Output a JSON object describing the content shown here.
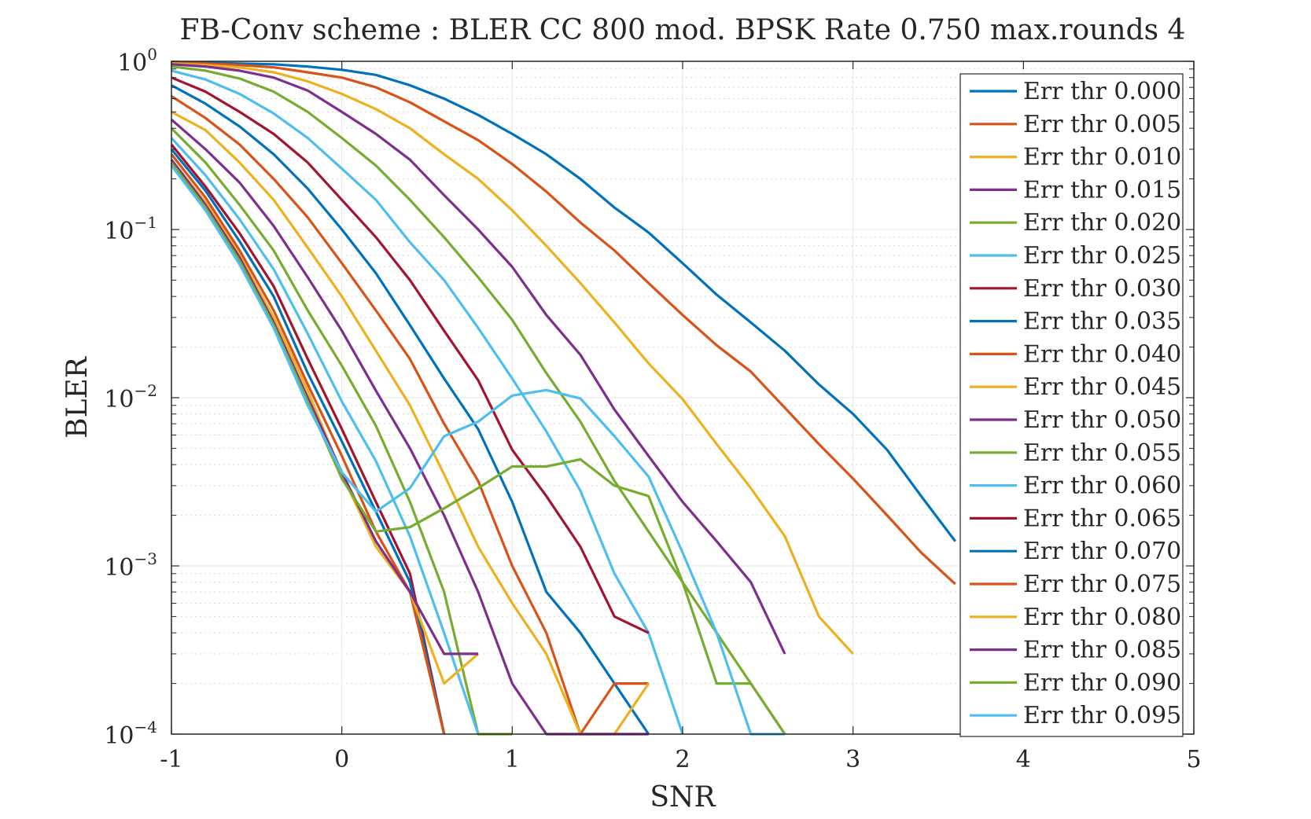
{
  "chart_data": {
    "type": "line",
    "title": "FB-Conv scheme : BLER CC 800 mod. BPSK Rate 0.750 max.rounds 4",
    "xlabel": "SNR",
    "ylabel": "BLER",
    "xlim": [
      -1,
      5
    ],
    "ylim": [
      0.0001,
      1
    ],
    "yscale": "log",
    "xticks": [
      "-1",
      "0",
      "1",
      "2",
      "3",
      "4",
      "5"
    ],
    "yticks": [
      {
        "base": "10",
        "exp": "0"
      },
      {
        "base": "10",
        "exp": "−1"
      },
      {
        "base": "10",
        "exp": "−2"
      },
      {
        "base": "10",
        "exp": "−3"
      },
      {
        "base": "10",
        "exp": "−4"
      }
    ],
    "grid": true,
    "minor_grid": true,
    "legend_position": "right",
    "series": [
      {
        "name": "Err thr 0.000",
        "color": "#0072BD",
        "x": [
          -1,
          -0.8,
          -0.6,
          -0.4,
          -0.2,
          0,
          0.2,
          0.4,
          0.6,
          0.8,
          1,
          1.2,
          1.4,
          1.6,
          1.8,
          2,
          2.2,
          2.4,
          2.6,
          2.8,
          3,
          3.2,
          3.4,
          3.6
        ],
        "y": [
          0.99,
          0.98,
          0.97,
          0.96,
          0.93,
          0.89,
          0.83,
          0.72,
          0.6,
          0.48,
          0.37,
          0.28,
          0.2,
          0.135,
          0.096,
          0.063,
          0.041,
          0.028,
          0.019,
          0.012,
          0.008,
          0.0049,
          0.0026,
          0.0014
        ]
      },
      {
        "name": "Err thr 0.005",
        "color": "#D95319",
        "x": [
          -1,
          -0.8,
          -0.6,
          -0.4,
          -0.2,
          0,
          0.2,
          0.4,
          0.6,
          0.8,
          1,
          1.2,
          1.4,
          1.6,
          1.8,
          2,
          2.2,
          2.4,
          2.6,
          2.8,
          3,
          3.2,
          3.4,
          3.6
        ],
        "y": [
          0.98,
          0.97,
          0.95,
          0.92,
          0.86,
          0.8,
          0.7,
          0.57,
          0.44,
          0.34,
          0.245,
          0.168,
          0.11,
          0.075,
          0.048,
          0.031,
          0.0205,
          0.0143,
          0.0087,
          0.0053,
          0.0033,
          0.002,
          0.0012,
          0.00078
        ]
      },
      {
        "name": "Err thr 0.010",
        "color": "#EDB120",
        "x": [
          -1,
          -0.8,
          -0.6,
          -0.4,
          -0.2,
          0,
          0.2,
          0.4,
          0.6,
          0.8,
          1,
          1.2,
          1.4,
          1.6,
          1.8,
          2,
          2.2,
          2.4,
          2.6,
          2.8,
          3
        ],
        "y": [
          0.97,
          0.95,
          0.92,
          0.86,
          0.76,
          0.64,
          0.52,
          0.4,
          0.28,
          0.2,
          0.13,
          0.08,
          0.048,
          0.028,
          0.016,
          0.0098,
          0.0053,
          0.0029,
          0.0015,
          0.0005,
          0.0003
        ]
      },
      {
        "name": "Err thr 0.015",
        "color": "#7E2F8E",
        "x": [
          -1,
          -0.8,
          -0.6,
          -0.4,
          -0.2,
          0,
          0.2,
          0.4,
          0.6,
          0.8,
          1,
          1.2,
          1.4,
          1.6,
          1.8,
          2,
          2.2,
          2.4,
          2.6
        ],
        "y": [
          0.96,
          0.93,
          0.88,
          0.8,
          0.67,
          0.5,
          0.37,
          0.26,
          0.16,
          0.1,
          0.06,
          0.031,
          0.018,
          0.0085,
          0.0045,
          0.0024,
          0.0014,
          0.0008,
          0.0003
        ]
      },
      {
        "name": "Err thr 0.020",
        "color": "#77AC30",
        "x": [
          -1,
          -0.8,
          -0.6,
          -0.4,
          -0.2,
          0,
          0.2,
          0.4,
          0.6,
          0.8,
          1,
          1.2,
          1.4,
          1.6,
          1.8,
          2,
          2.2,
          2.4,
          2.6
        ],
        "y": [
          0.93,
          0.88,
          0.79,
          0.66,
          0.5,
          0.35,
          0.24,
          0.15,
          0.09,
          0.052,
          0.029,
          0.014,
          0.0072,
          0.0032,
          0.0016,
          0.0008,
          0.0004,
          0.0002,
          0.0001
        ]
      },
      {
        "name": "Err thr 0.025",
        "color": "#4DBEEE",
        "x": [
          -1,
          -0.8,
          -0.6,
          -0.4,
          -0.2,
          0,
          0.2,
          0.4,
          0.6,
          0.8,
          1,
          1.2,
          1.4,
          1.6,
          1.8,
          2
        ],
        "y": [
          0.88,
          0.78,
          0.64,
          0.49,
          0.35,
          0.23,
          0.15,
          0.084,
          0.05,
          0.026,
          0.013,
          0.0063,
          0.0028,
          0.0009,
          0.0004,
          0.0001
        ]
      },
      {
        "name": "Err thr 0.030",
        "color": "#A2142F",
        "x": [
          -1,
          -0.8,
          -0.6,
          -0.4,
          -0.2,
          0,
          0.2,
          0.4,
          0.6,
          0.8,
          1,
          1.2,
          1.4,
          1.6,
          1.8
        ],
        "y": [
          0.8,
          0.66,
          0.5,
          0.37,
          0.25,
          0.15,
          0.09,
          0.05,
          0.025,
          0.0127,
          0.0049,
          0.0026,
          0.0013,
          0.0005,
          0.0004
        ]
      },
      {
        "name": "Err thr 0.035",
        "color": "#0072BD",
        "x": [
          -1,
          -0.8,
          -0.6,
          -0.4,
          -0.2,
          0,
          0.2,
          0.4,
          0.6,
          0.8,
          1,
          1.2,
          1.4,
          1.6,
          1.8
        ],
        "y": [
          0.72,
          0.56,
          0.41,
          0.28,
          0.175,
          0.1,
          0.055,
          0.027,
          0.013,
          0.0065,
          0.0024,
          0.0007,
          0.0004,
          0.0002,
          0.0001
        ]
      },
      {
        "name": "Err thr 0.040",
        "color": "#D95319",
        "x": [
          -1,
          -0.8,
          -0.6,
          -0.4,
          -0.2,
          0,
          0.2,
          0.4,
          0.6,
          0.8,
          1,
          1.2,
          1.4,
          1.6,
          1.8
        ],
        "y": [
          0.62,
          0.46,
          0.32,
          0.2,
          0.118,
          0.063,
          0.033,
          0.017,
          0.007,
          0.0032,
          0.001,
          0.0004,
          0.0001,
          0.0002,
          0.0002
        ]
      },
      {
        "name": "Err thr 0.045",
        "color": "#EDB120",
        "x": [
          -1,
          -0.8,
          -0.6,
          -0.4,
          -0.2,
          0,
          0.2,
          0.4,
          0.6,
          0.8,
          1,
          1.2,
          1.4,
          1.6,
          1.8
        ],
        "y": [
          0.5,
          0.39,
          0.25,
          0.15,
          0.078,
          0.04,
          0.019,
          0.009,
          0.0035,
          0.0013,
          0.0006,
          0.0003,
          0.0001,
          0.0001,
          0.0002
        ]
      },
      {
        "name": "Err thr 0.050",
        "color": "#7E2F8E",
        "x": [
          -1,
          -0.8,
          -0.6,
          -0.4,
          -0.2,
          0,
          0.2,
          0.4,
          0.6,
          0.8,
          1,
          1.2,
          1.4,
          1.6,
          1.8
        ],
        "y": [
          0.45,
          0.3,
          0.19,
          0.105,
          0.052,
          0.025,
          0.011,
          0.005,
          0.002,
          0.0007,
          0.0002,
          0.0001,
          0.0001,
          0.0001,
          0.0001
        ]
      },
      {
        "name": "Err thr 0.055",
        "color": "#77AC30",
        "x": [
          -1,
          -0.8,
          -0.6,
          -0.4,
          -0.2,
          0,
          0.2,
          0.4,
          0.6,
          0.8,
          1
        ],
        "y": [
          0.4,
          0.25,
          0.14,
          0.075,
          0.033,
          0.0155,
          0.0068,
          0.0024,
          0.0007,
          0.0001,
          0.0001
        ]
      },
      {
        "name": "Err thr 0.060",
        "color": "#4DBEEE",
        "x": [
          -1,
          -0.8,
          -0.6,
          -0.4,
          -0.2,
          0,
          0.2,
          0.4,
          0.6,
          0.8
        ],
        "y": [
          0.35,
          0.21,
          0.115,
          0.058,
          0.024,
          0.0095,
          0.0042,
          0.0015,
          0.0004,
          0.0001
        ]
      },
      {
        "name": "Err thr 0.065",
        "color": "#A2142F",
        "x": [
          -1,
          -0.8,
          -0.6,
          -0.4,
          -0.2,
          0,
          0.2,
          0.4,
          0.6
        ],
        "y": [
          0.32,
          0.18,
          0.095,
          0.046,
          0.017,
          0.0065,
          0.0024,
          0.0009,
          0.0001
        ]
      },
      {
        "name": "Err thr 0.070",
        "color": "#0072BD",
        "x": [
          -1,
          -0.8,
          -0.6,
          -0.4,
          -0.2,
          0,
          0.2,
          0.4,
          0.6
        ],
        "y": [
          0.3,
          0.17,
          0.085,
          0.04,
          0.014,
          0.0055,
          0.0021,
          0.0008,
          0.0001
        ]
      },
      {
        "name": "Err thr 0.075",
        "color": "#D95319",
        "x": [
          -1,
          -0.8,
          -0.6,
          -0.4,
          -0.2,
          0,
          0.2,
          0.4,
          0.6
        ],
        "y": [
          0.28,
          0.155,
          0.075,
          0.033,
          0.012,
          0.0045,
          0.0016,
          0.0007,
          0.0001
        ]
      },
      {
        "name": "Err thr 0.080",
        "color": "#EDB120",
        "x": [
          -1,
          -0.8,
          -0.6,
          -0.4,
          -0.2,
          0,
          0.2,
          0.4,
          0.6,
          0.8
        ],
        "y": [
          0.26,
          0.145,
          0.07,
          0.03,
          0.011,
          0.0035,
          0.0013,
          0.0007,
          0.0002,
          0.0003
        ]
      },
      {
        "name": "Err thr 0.085",
        "color": "#7E2F8E",
        "x": [
          -1,
          -0.8,
          -0.6,
          -0.4,
          -0.2,
          0,
          0.2,
          0.4,
          0.6,
          0.8
        ],
        "y": [
          0.26,
          0.14,
          0.068,
          0.028,
          0.01,
          0.0036,
          0.0014,
          0.0007,
          0.0003,
          0.0003
        ]
      },
      {
        "name": "Err thr 0.090",
        "color": "#77AC30",
        "x": [
          -1,
          -0.8,
          -0.6,
          -0.4,
          -0.2,
          0,
          0.2,
          0.4,
          0.6,
          0.8,
          1,
          1.2,
          1.4,
          1.6,
          1.8,
          2,
          2.2,
          2.4,
          2.6
        ],
        "y": [
          0.25,
          0.135,
          0.065,
          0.027,
          0.0095,
          0.0033,
          0.0016,
          0.0017,
          0.0022,
          0.0029,
          0.0039,
          0.0039,
          0.0043,
          0.003,
          0.0026,
          0.0008,
          0.0002,
          0.0002,
          0.0001
        ]
      },
      {
        "name": "Err thr 0.095",
        "color": "#4DBEEE",
        "x": [
          -1,
          -0.8,
          -0.6,
          -0.4,
          -0.2,
          0,
          0.2,
          0.4,
          0.6,
          0.8,
          1,
          1.2,
          1.4,
          1.6,
          1.8,
          2,
          2.2,
          2.4,
          2.6
        ],
        "y": [
          0.24,
          0.13,
          0.062,
          0.026,
          0.009,
          0.0036,
          0.0021,
          0.0029,
          0.0059,
          0.0072,
          0.0103,
          0.0111,
          0.0099,
          0.0059,
          0.0034,
          0.0012,
          0.0004,
          0.0001,
          0.0001
        ]
      }
    ]
  }
}
